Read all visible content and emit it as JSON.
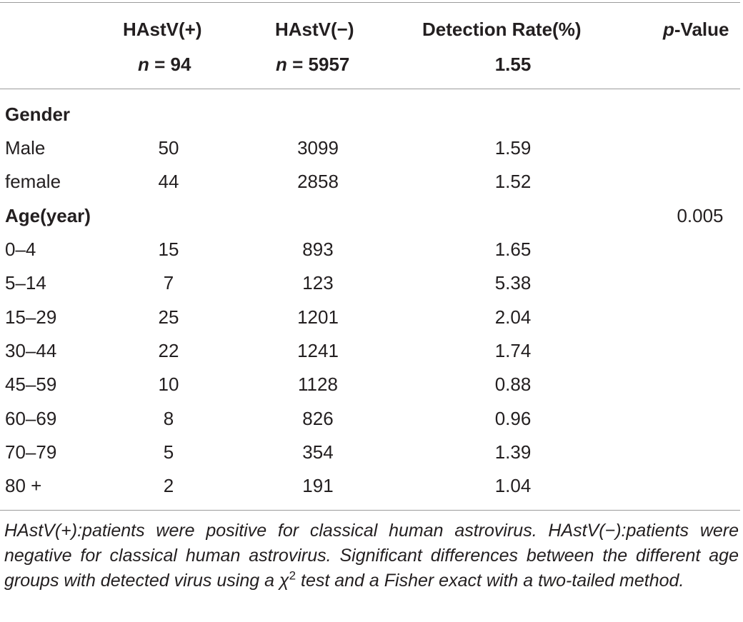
{
  "table": {
    "headers": {
      "col1": {
        "title": "HAstV(+)",
        "n_label": "n",
        "n_value": "= 94"
      },
      "col2": {
        "title": "HAstV(−)",
        "n_label": "n",
        "n_value": "= 5957"
      },
      "col3": {
        "title": "Detection Rate(%)",
        "value": "1.55"
      },
      "col4": {
        "title_italic": "p",
        "title_rest": "-Value"
      }
    },
    "sections": [
      {
        "label": "Gender",
        "p_value": "",
        "rows": [
          {
            "label": "Male",
            "pos": "50",
            "neg": "3099",
            "rate": "1.59"
          },
          {
            "label": "female",
            "pos": "44",
            "neg": "2858",
            "rate": "1.52"
          }
        ]
      },
      {
        "label": "Age(year)",
        "p_value": "0.005",
        "rows": [
          {
            "label": "0–4",
            "pos": "15",
            "neg": "893",
            "rate": "1.65"
          },
          {
            "label": "5–14",
            "pos": "7",
            "neg": "123",
            "rate": "5.38"
          },
          {
            "label": "15–29",
            "pos": "25",
            "neg": "1201",
            "rate": "2.04"
          },
          {
            "label": "30–44",
            "pos": "22",
            "neg": "1241",
            "rate": "1.74"
          },
          {
            "label": "45–59",
            "pos": "10",
            "neg": "1128",
            "rate": "0.88"
          },
          {
            "label": "60–69",
            "pos": "8",
            "neg": "826",
            "rate": "0.96"
          },
          {
            "label": "70–79",
            "pos": "5",
            "neg": "354",
            "rate": "1.39"
          },
          {
            "label": "80 +",
            "pos": "2",
            "neg": "191",
            "rate": "1.04"
          }
        ]
      }
    ]
  },
  "footnote": {
    "before_sup": "HAstV(+):patients were positive for classical human astrovirus. HAstV(−):patients were negative for classical human astrovirus. Significant differences between the different age groups with detected virus using a χ",
    "sup": "2",
    "after_sup": " test and a Fisher exact with a two-tailed method."
  }
}
